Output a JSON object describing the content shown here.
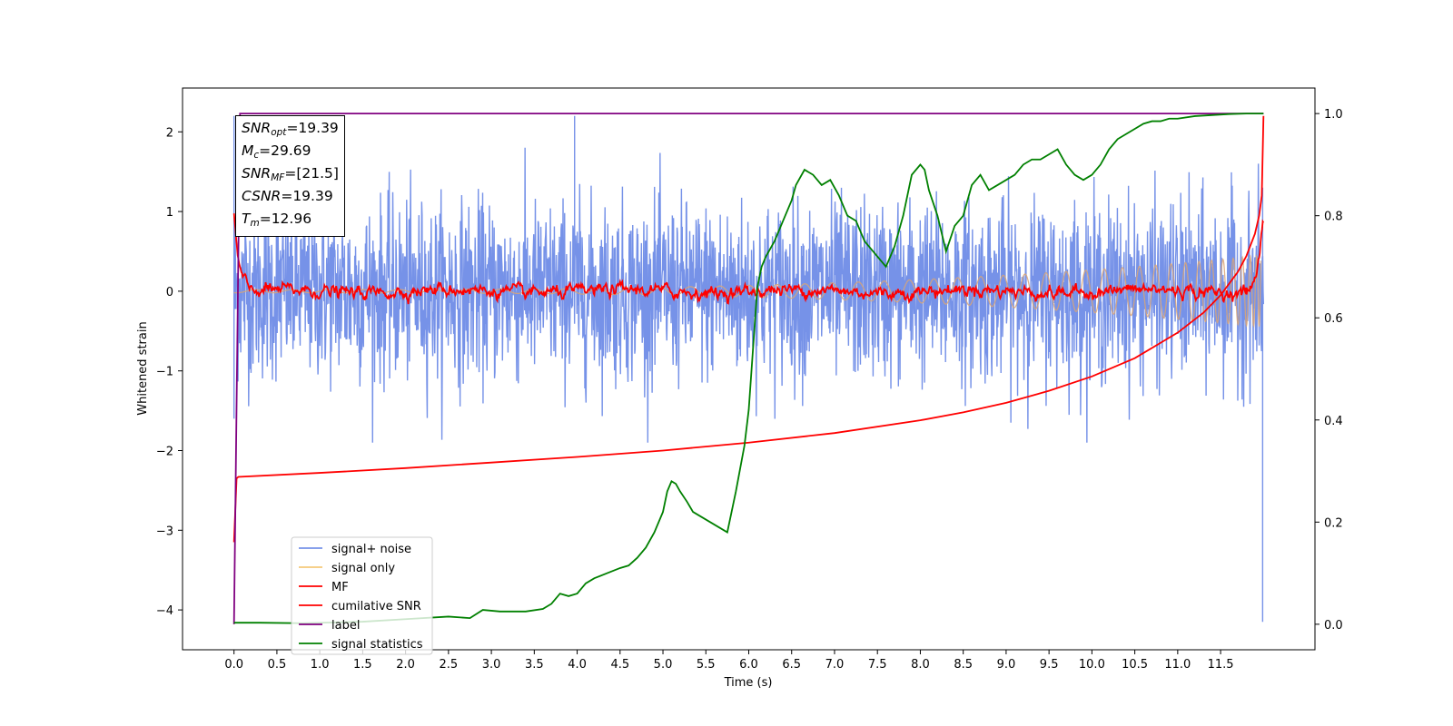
{
  "chart_data": {
    "type": "line",
    "xlabel": "Time (s)",
    "ylabel": "Whitened strain",
    "x_ticks": [
      "0.0",
      "0.5",
      "1.0",
      "1.5",
      "2.0",
      "2.5",
      "3.0",
      "3.5",
      "4.0",
      "4.5",
      "5.0",
      "5.5",
      "6.0",
      "6.5",
      "7.0",
      "7.5",
      "8.0",
      "8.5",
      "9.0",
      "9.5",
      "10.0",
      "10.5",
      "11.0",
      "11.5"
    ],
    "y_ticks_left": [
      "2",
      "1",
      "0",
      "−1",
      "−2",
      "−3",
      "−4"
    ],
    "y_ticks_right": [
      "1.0",
      "0.8",
      "0.6",
      "0.4",
      "0.2",
      "0.0"
    ],
    "xlim": [
      -0.6,
      12.6
    ],
    "ylim_left": [
      -4.5,
      2.55
    ],
    "ylim_right": [
      -0.05,
      1.05
    ],
    "grid": false,
    "legend_position": "lower-left",
    "colors": {
      "signal_noise": "#7692e8",
      "signal_only": "#f5c979",
      "mf": "#ff0000",
      "cumulative_snr": "#ff0000",
      "label": "#800080",
      "signal_statistics": "#008000"
    },
    "series": [
      {
        "name": "signal+ noise",
        "axis": "left",
        "style": "noise",
        "std": 0.55,
        "spike_max": 2.2,
        "spike_min": -4.15
      },
      {
        "name": "signal only",
        "axis": "left",
        "style": "chirp",
        "amplitude_start": 0.02,
        "amplitude_end": 0.45
      },
      {
        "name": "MF",
        "axis": "left",
        "style": "filter",
        "baseline": 0.0,
        "fluctuation": 0.05,
        "x": [
          0.0,
          0.03,
          0.06,
          0.12,
          0.2,
          11.8,
          11.9,
          11.96,
          11.99
        ],
        "y": [
          1.0,
          0.6,
          0.35,
          0.15,
          0.05,
          0.05,
          0.2,
          0.55,
          0.9
        ]
      },
      {
        "name": "cumilative SNR",
        "axis": "left",
        "x": [
          0.0,
          0.03,
          0.05,
          1.0,
          2.0,
          3.0,
          4.0,
          5.0,
          6.0,
          7.0,
          8.0,
          8.5,
          9.0,
          9.5,
          10.0,
          10.5,
          11.0,
          11.3,
          11.5,
          11.7,
          11.8,
          11.9,
          11.95,
          11.98,
          12.0
        ],
        "y": [
          -3.15,
          -2.35,
          -2.33,
          -2.28,
          -2.22,
          -2.15,
          -2.08,
          -2.0,
          -1.9,
          -1.78,
          -1.62,
          -1.52,
          -1.4,
          -1.25,
          -1.07,
          -0.84,
          -0.52,
          -0.27,
          -0.05,
          0.24,
          0.44,
          0.72,
          0.95,
          1.2,
          2.2
        ]
      },
      {
        "name": "label",
        "axis": "right",
        "x": [
          0.0,
          0.07,
          12.0
        ],
        "y": [
          0.0,
          1.0,
          1.0
        ]
      },
      {
        "name": "signal statistics",
        "axis": "right",
        "x": [
          0.0,
          0.3,
          0.8,
          1.5,
          2.0,
          2.5,
          2.75,
          2.9,
          3.1,
          3.4,
          3.6,
          3.7,
          3.8,
          3.9,
          4.0,
          4.1,
          4.2,
          4.35,
          4.5,
          4.6,
          4.7,
          4.8,
          4.9,
          5.0,
          5.05,
          5.1,
          5.15,
          5.2,
          5.28,
          5.35,
          5.45,
          5.55,
          5.65,
          5.75,
          5.85,
          5.95,
          6.0,
          6.05,
          6.1,
          6.15,
          6.2,
          6.3,
          6.4,
          6.5,
          6.55,
          6.65,
          6.75,
          6.85,
          6.95,
          7.05,
          7.15,
          7.25,
          7.35,
          7.45,
          7.5,
          7.6,
          7.7,
          7.8,
          7.9,
          8.0,
          8.05,
          8.1,
          8.2,
          8.3,
          8.4,
          8.5,
          8.6,
          8.7,
          8.8,
          8.9,
          9.0,
          9.1,
          9.2,
          9.3,
          9.4,
          9.5,
          9.6,
          9.7,
          9.8,
          9.9,
          10.0,
          10.1,
          10.2,
          10.3,
          10.4,
          10.5,
          10.6,
          10.7,
          10.8,
          10.9,
          11.0,
          11.2,
          11.4,
          11.6,
          11.8,
          12.0
        ],
        "y": [
          0.003,
          0.003,
          0.002,
          0.005,
          0.01,
          0.015,
          0.012,
          0.028,
          0.025,
          0.025,
          0.03,
          0.04,
          0.06,
          0.055,
          0.06,
          0.08,
          0.09,
          0.1,
          0.11,
          0.115,
          0.13,
          0.15,
          0.18,
          0.22,
          0.26,
          0.28,
          0.275,
          0.26,
          0.24,
          0.22,
          0.21,
          0.2,
          0.19,
          0.18,
          0.26,
          0.35,
          0.42,
          0.54,
          0.66,
          0.7,
          0.72,
          0.75,
          0.79,
          0.83,
          0.86,
          0.89,
          0.88,
          0.86,
          0.87,
          0.84,
          0.8,
          0.79,
          0.75,
          0.73,
          0.72,
          0.7,
          0.74,
          0.8,
          0.88,
          0.9,
          0.89,
          0.85,
          0.8,
          0.73,
          0.78,
          0.8,
          0.86,
          0.88,
          0.85,
          0.86,
          0.87,
          0.88,
          0.9,
          0.91,
          0.91,
          0.92,
          0.93,
          0.9,
          0.88,
          0.87,
          0.88,
          0.9,
          0.93,
          0.95,
          0.96,
          0.97,
          0.98,
          0.985,
          0.985,
          0.99,
          0.99,
          0.995,
          0.997,
          0.999,
          1.0,
          1.0
        ]
      }
    ],
    "annotation": {
      "lines": [
        {
          "symbol": "SNR",
          "sub": "opt",
          "value": "=19.39"
        },
        {
          "symbol": "M",
          "sub": "c",
          "value": "=29.69"
        },
        {
          "symbol": "SNR",
          "sub": "MF",
          "value": "=[21.5]"
        },
        {
          "symbol": "CSNR",
          "sub": "",
          "value": "=19.39"
        },
        {
          "symbol": "T",
          "sub": "m",
          "value": "=12.96"
        }
      ]
    }
  }
}
